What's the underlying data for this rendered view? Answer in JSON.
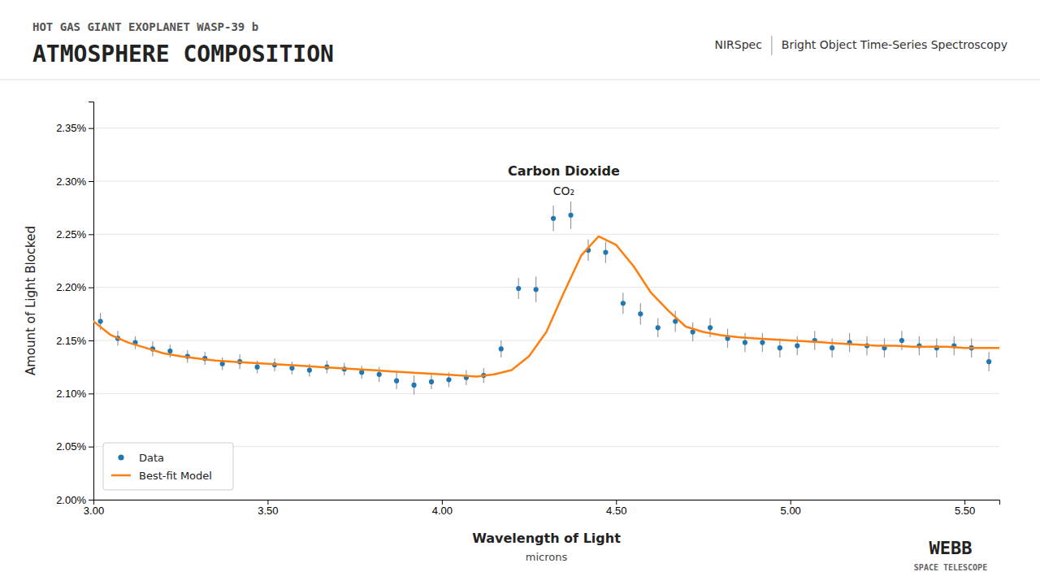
{
  "chart_data": {
    "type": "scatter",
    "title": "ATMOSPHERE COMPOSITION",
    "subtitle": "HOT GAS GIANT EXOPLANET WASP-39 b",
    "header_texts": [
      "NIRSpec",
      "Bright Object Time-Series Spectroscopy"
    ],
    "logo": [
      "WEBB",
      "SPACE TELESCOPE"
    ],
    "xlabel": "Wavelength of Light",
    "xlabel_sub": "microns",
    "ylabel": "Amount of Light Blocked",
    "annotations": [
      {
        "text": "Carbon Dioxide",
        "x": 4.35,
        "y": 2.305
      },
      {
        "text": "CO₂",
        "x": 4.35,
        "y": 2.285
      }
    ],
    "xlim": [
      3.0,
      5.6
    ],
    "ylim": [
      2.0,
      2.375
    ],
    "xticks": [
      {
        "value": 3.0,
        "label": "3.00"
      },
      {
        "value": 3.5,
        "label": "3.50"
      },
      {
        "value": 4.0,
        "label": "4.00"
      },
      {
        "value": 4.5,
        "label": "4.50"
      },
      {
        "value": 5.0,
        "label": "5.00"
      },
      {
        "value": 5.5,
        "label": "5.50"
      }
    ],
    "yticks": [
      {
        "value": 2.0,
        "label": "2.00%"
      },
      {
        "value": 2.05,
        "label": "2.05%"
      },
      {
        "value": 2.1,
        "label": "2.10%"
      },
      {
        "value": 2.15,
        "label": "2.15%"
      },
      {
        "value": 2.2,
        "label": "2.20%"
      },
      {
        "value": 2.25,
        "label": "2.25%"
      },
      {
        "value": 2.3,
        "label": "2.30%"
      },
      {
        "value": 2.35,
        "label": "2.35%"
      }
    ],
    "grid": true,
    "legend": "lower left",
    "series": [
      {
        "name": "Data",
        "type": "scatter",
        "marker": "circle",
        "x": [
          3.02,
          3.07,
          3.12,
          3.17,
          3.22,
          3.27,
          3.32,
          3.37,
          3.42,
          3.47,
          3.52,
          3.57,
          3.62,
          3.67,
          3.72,
          3.77,
          3.82,
          3.87,
          3.92,
          3.97,
          4.02,
          4.07,
          4.12,
          4.17,
          4.22,
          4.27,
          4.32,
          4.37,
          4.42,
          4.47,
          4.52,
          4.57,
          4.62,
          4.67,
          4.72,
          4.77,
          4.82,
          4.87,
          4.92,
          4.97,
          5.02,
          5.07,
          5.12,
          5.17,
          5.22,
          5.27,
          5.32,
          5.37,
          5.42,
          5.47,
          5.52,
          5.57
        ],
        "values": [
          2.168,
          2.152,
          2.148,
          2.142,
          2.14,
          2.135,
          2.133,
          2.128,
          2.13,
          2.125,
          2.127,
          2.124,
          2.122,
          2.125,
          2.123,
          2.12,
          2.118,
          2.112,
          2.108,
          2.111,
          2.113,
          2.115,
          2.117,
          2.142,
          2.199,
          2.198,
          2.265,
          2.268,
          2.235,
          2.233,
          2.185,
          2.175,
          2.162,
          2.168,
          2.158,
          2.162,
          2.152,
          2.148,
          2.148,
          2.143,
          2.145,
          2.15,
          2.143,
          2.148,
          2.145,
          2.143,
          2.15,
          2.145,
          2.143,
          2.145,
          2.143,
          2.13
        ],
        "errors": [
          0.008,
          0.007,
          0.006,
          0.007,
          0.006,
          0.006,
          0.006,
          0.006,
          0.007,
          0.006,
          0.006,
          0.006,
          0.006,
          0.006,
          0.006,
          0.006,
          0.007,
          0.008,
          0.009,
          0.007,
          0.007,
          0.007,
          0.007,
          0.008,
          0.01,
          0.012,
          0.012,
          0.013,
          0.01,
          0.01,
          0.01,
          0.01,
          0.009,
          0.01,
          0.009,
          0.009,
          0.009,
          0.009,
          0.009,
          0.009,
          0.009,
          0.009,
          0.009,
          0.009,
          0.009,
          0.009,
          0.009,
          0.009,
          0.009,
          0.009,
          0.009,
          0.009
        ]
      },
      {
        "name": "Best-fit Model",
        "type": "line",
        "x": [
          3.0,
          3.05,
          3.1,
          3.15,
          3.2,
          3.25,
          3.3,
          3.35,
          3.4,
          3.45,
          3.5,
          3.55,
          3.6,
          3.65,
          3.7,
          3.75,
          3.8,
          3.85,
          3.9,
          3.95,
          4.0,
          4.05,
          4.1,
          4.15,
          4.2,
          4.25,
          4.3,
          4.35,
          4.4,
          4.45,
          4.5,
          4.55,
          4.6,
          4.65,
          4.7,
          4.75,
          4.8,
          4.85,
          4.9,
          4.95,
          5.0,
          5.05,
          5.1,
          5.15,
          5.2,
          5.25,
          5.3,
          5.35,
          5.4,
          5.45,
          5.5,
          5.55,
          5.6
        ],
        "values": [
          2.168,
          2.155,
          2.148,
          2.143,
          2.138,
          2.135,
          2.133,
          2.131,
          2.13,
          2.129,
          2.128,
          2.127,
          2.126,
          2.125,
          2.124,
          2.123,
          2.122,
          2.121,
          2.12,
          2.119,
          2.118,
          2.117,
          2.116,
          2.118,
          2.122,
          2.135,
          2.158,
          2.195,
          2.23,
          2.248,
          2.24,
          2.22,
          2.195,
          2.178,
          2.163,
          2.158,
          2.155,
          2.153,
          2.152,
          2.151,
          2.15,
          2.149,
          2.148,
          2.147,
          2.146,
          2.145,
          2.145,
          2.144,
          2.144,
          2.144,
          2.143,
          2.143,
          2.143
        ]
      }
    ]
  }
}
